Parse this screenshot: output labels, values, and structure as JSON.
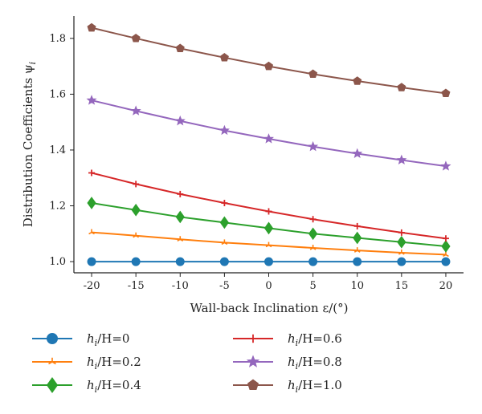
{
  "chart_data": {
    "type": "line",
    "xlabel": "Wall-back Inclination ε/(°)",
    "ylabel": "Distribution Coefficients ψ",
    "ylabel_sub": "i",
    "xlim": [
      -22,
      22
    ],
    "ylim": [
      0.96,
      1.88
    ],
    "xticks": [
      "-20",
      "-15",
      "-10",
      "-5",
      "0",
      "5",
      "10",
      "15",
      "20"
    ],
    "yticks": [
      "1.0",
      "1.2",
      "1.4",
      "1.6",
      "1.8"
    ],
    "x": [
      -20,
      -15,
      -10,
      -5,
      0,
      5,
      10,
      15,
      20
    ],
    "legend_placement": "bottom",
    "series": [
      {
        "name": "h/H=0",
        "label_h": "h",
        "label_sub": "i",
        "label_rest": "/H=0",
        "color": "#1f77b4",
        "marker": "circle",
        "values": [
          1.0,
          1.0,
          1.0,
          1.0,
          1.0,
          1.0,
          1.0,
          1.0,
          1.0
        ]
      },
      {
        "name": "h/H=0.2",
        "label_h": "h",
        "label_sub": "i",
        "label_rest": "/H=0.2",
        "color": "#ff7f0e",
        "marker": "tri",
        "values": [
          1.105,
          1.093,
          1.08,
          1.068,
          1.059,
          1.049,
          1.04,
          1.032,
          1.025
        ]
      },
      {
        "name": "h/H=0.4",
        "label_h": "h",
        "label_sub": "i",
        "label_rest": "/H=0.4",
        "color": "#2ca02c",
        "marker": "diamond",
        "values": [
          1.21,
          1.185,
          1.16,
          1.14,
          1.12,
          1.1,
          1.085,
          1.07,
          1.055
        ]
      },
      {
        "name": "h/H=0.6",
        "label_h": "h",
        "label_sub": "i",
        "label_rest": "/H=0.6",
        "color": "#d62728",
        "marker": "plus",
        "values": [
          1.318,
          1.278,
          1.242,
          1.21,
          1.18,
          1.152,
          1.127,
          1.104,
          1.083
        ]
      },
      {
        "name": "h/H=0.8",
        "label_h": "h",
        "label_sub": "i",
        "label_rest": "/H=0.8",
        "color": "#9467bd",
        "marker": "star",
        "values": [
          1.578,
          1.54,
          1.504,
          1.47,
          1.44,
          1.412,
          1.387,
          1.364,
          1.342
        ]
      },
      {
        "name": "h/H=1.0",
        "label_h": "h",
        "label_sub": "i",
        "label_rest": "/H=1.0",
        "color": "#8c564b",
        "marker": "pentagon",
        "values": [
          1.838,
          1.8,
          1.764,
          1.731,
          1.7,
          1.672,
          1.647,
          1.624,
          1.603
        ]
      }
    ]
  }
}
